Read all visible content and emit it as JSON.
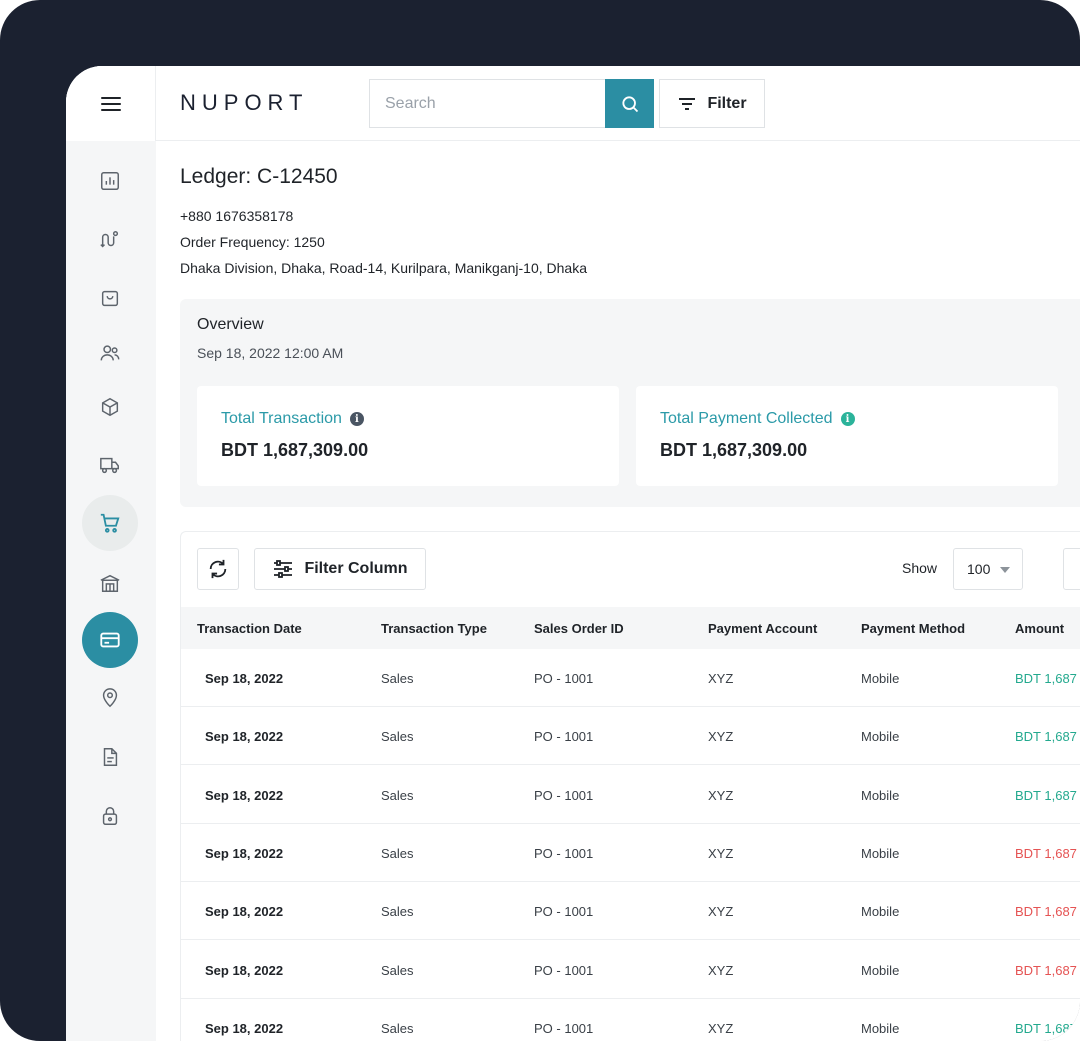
{
  "app": {
    "logo": "NUPORT"
  },
  "search": {
    "placeholder": "Search"
  },
  "toolbar": {
    "filter_label": "Filter"
  },
  "ledger": {
    "title": "Ledger: C-12450",
    "phone": "+880 1676358178",
    "order_frequency": "Order Frequency: 1250",
    "address": "Dhaka Division, Dhaka, Road-14, Kurilpara, Manikganj-10, Dhaka"
  },
  "overview": {
    "title": "Overview",
    "date": "Sep 18, 2022 12:00 AM",
    "cards": [
      {
        "label": "Total Transaction",
        "value": "BDT 1,687,309.00",
        "info_color": "#4a5563"
      },
      {
        "label": "Total Payment Collected",
        "value": "BDT 1,687,309.00",
        "info_color": "#2bb39a"
      }
    ]
  },
  "table_controls": {
    "filter_column_label": "Filter Column",
    "show_label": "Show",
    "show_value": "100"
  },
  "table": {
    "columns": [
      "Transaction Date",
      "Transaction Type",
      "Sales Order ID",
      "Payment Account",
      "Payment Method",
      "Amount"
    ],
    "rows": [
      {
        "date": "Sep 18, 2022",
        "type": "Sales",
        "order_id": "PO - 1001",
        "account": "XYZ",
        "method": "Mobile",
        "amount": "BDT 1,687",
        "amount_color": "#23a98e"
      },
      {
        "date": "Sep 18, 2022",
        "type": "Sales",
        "order_id": "PO - 1001",
        "account": "XYZ",
        "method": "Mobile",
        "amount": "BDT 1,687",
        "amount_color": "#23a98e"
      },
      {
        "date": "Sep 18, 2022",
        "type": "Sales",
        "order_id": "PO - 1001",
        "account": "XYZ",
        "method": "Mobile",
        "amount": "BDT 1,687",
        "amount_color": "#23a98e"
      },
      {
        "date": "Sep 18, 2022",
        "type": "Sales",
        "order_id": "PO - 1001",
        "account": "XYZ",
        "method": "Mobile",
        "amount": "BDT 1,687",
        "amount_color": "#e55353"
      },
      {
        "date": "Sep 18, 2022",
        "type": "Sales",
        "order_id": "PO - 1001",
        "account": "XYZ",
        "method": "Mobile",
        "amount": "BDT 1,687",
        "amount_color": "#e55353"
      },
      {
        "date": "Sep 18, 2022",
        "type": "Sales",
        "order_id": "PO - 1001",
        "account": "XYZ",
        "method": "Mobile",
        "amount": "BDT 1,687",
        "amount_color": "#e55353"
      },
      {
        "date": "Sep 18, 2022",
        "type": "Sales",
        "order_id": "PO - 1001",
        "account": "XYZ",
        "method": "Mobile",
        "amount": "BDT 1,687",
        "amount_color": "#23a98e"
      }
    ]
  },
  "sidebar": {
    "items": [
      {
        "icon": "bar-chart-icon",
        "state": "normal"
      },
      {
        "icon": "route-icon",
        "state": "normal"
      },
      {
        "icon": "shopping-bag-icon",
        "state": "normal"
      },
      {
        "icon": "users-icon",
        "state": "normal"
      },
      {
        "icon": "box-icon",
        "state": "normal"
      },
      {
        "icon": "truck-icon",
        "state": "normal"
      },
      {
        "icon": "cart-icon",
        "state": "hover"
      },
      {
        "icon": "warehouse-icon",
        "state": "normal"
      },
      {
        "icon": "credit-card-icon",
        "state": "active"
      },
      {
        "icon": "location-pin-icon",
        "state": "normal"
      },
      {
        "icon": "document-icon",
        "state": "normal"
      },
      {
        "icon": "lock-icon",
        "state": "normal"
      }
    ]
  },
  "colors": {
    "accent": "#2b8ea3",
    "teal_text": "#2b9aa8",
    "positive": "#23a98e",
    "negative": "#e55353",
    "frame": "#1b2130"
  }
}
